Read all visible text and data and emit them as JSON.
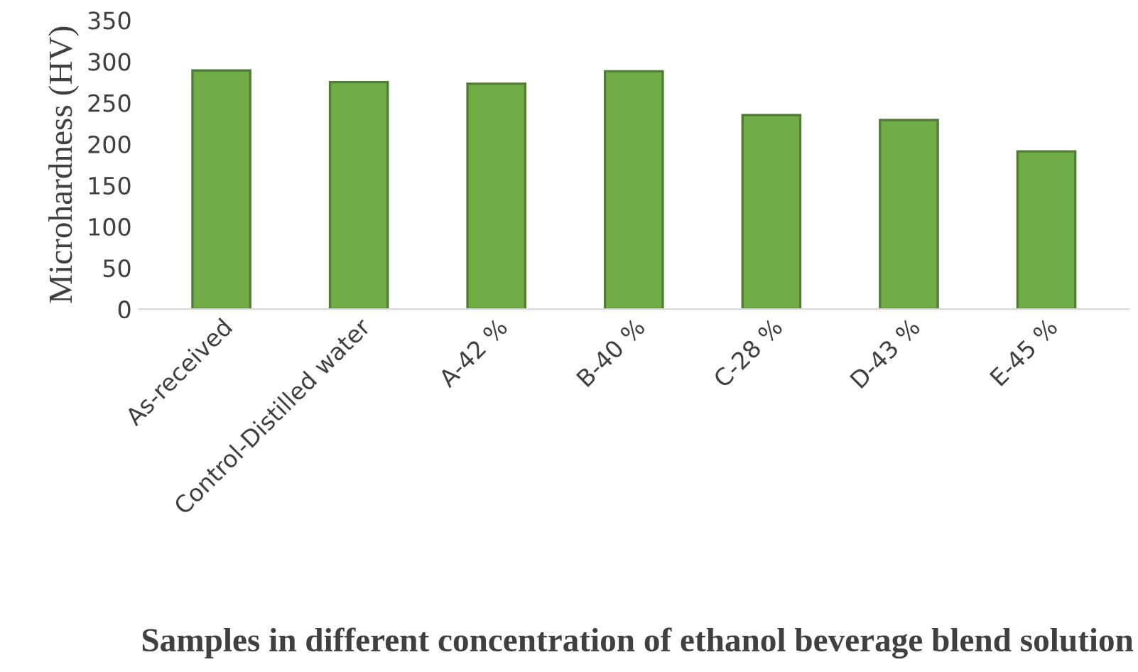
{
  "chart_data": {
    "type": "bar",
    "xlabel": "Samples in different concentration of ethanol beverage blend solution",
    "ylabel": "Microhardness (HV)",
    "categories": [
      "As-received",
      "Control-Distilled water",
      "A-42 %",
      "B-40 %",
      "C-28 %",
      "D-43 %",
      "E-45 %"
    ],
    "values": [
      289,
      275,
      273,
      288,
      235,
      229,
      191
    ],
    "color": "#70ad47",
    "ylim": [
      0,
      350
    ],
    "yticks": [
      0,
      50,
      100,
      150,
      200,
      250,
      300,
      350
    ],
    "grid": false,
    "legend": false
  }
}
